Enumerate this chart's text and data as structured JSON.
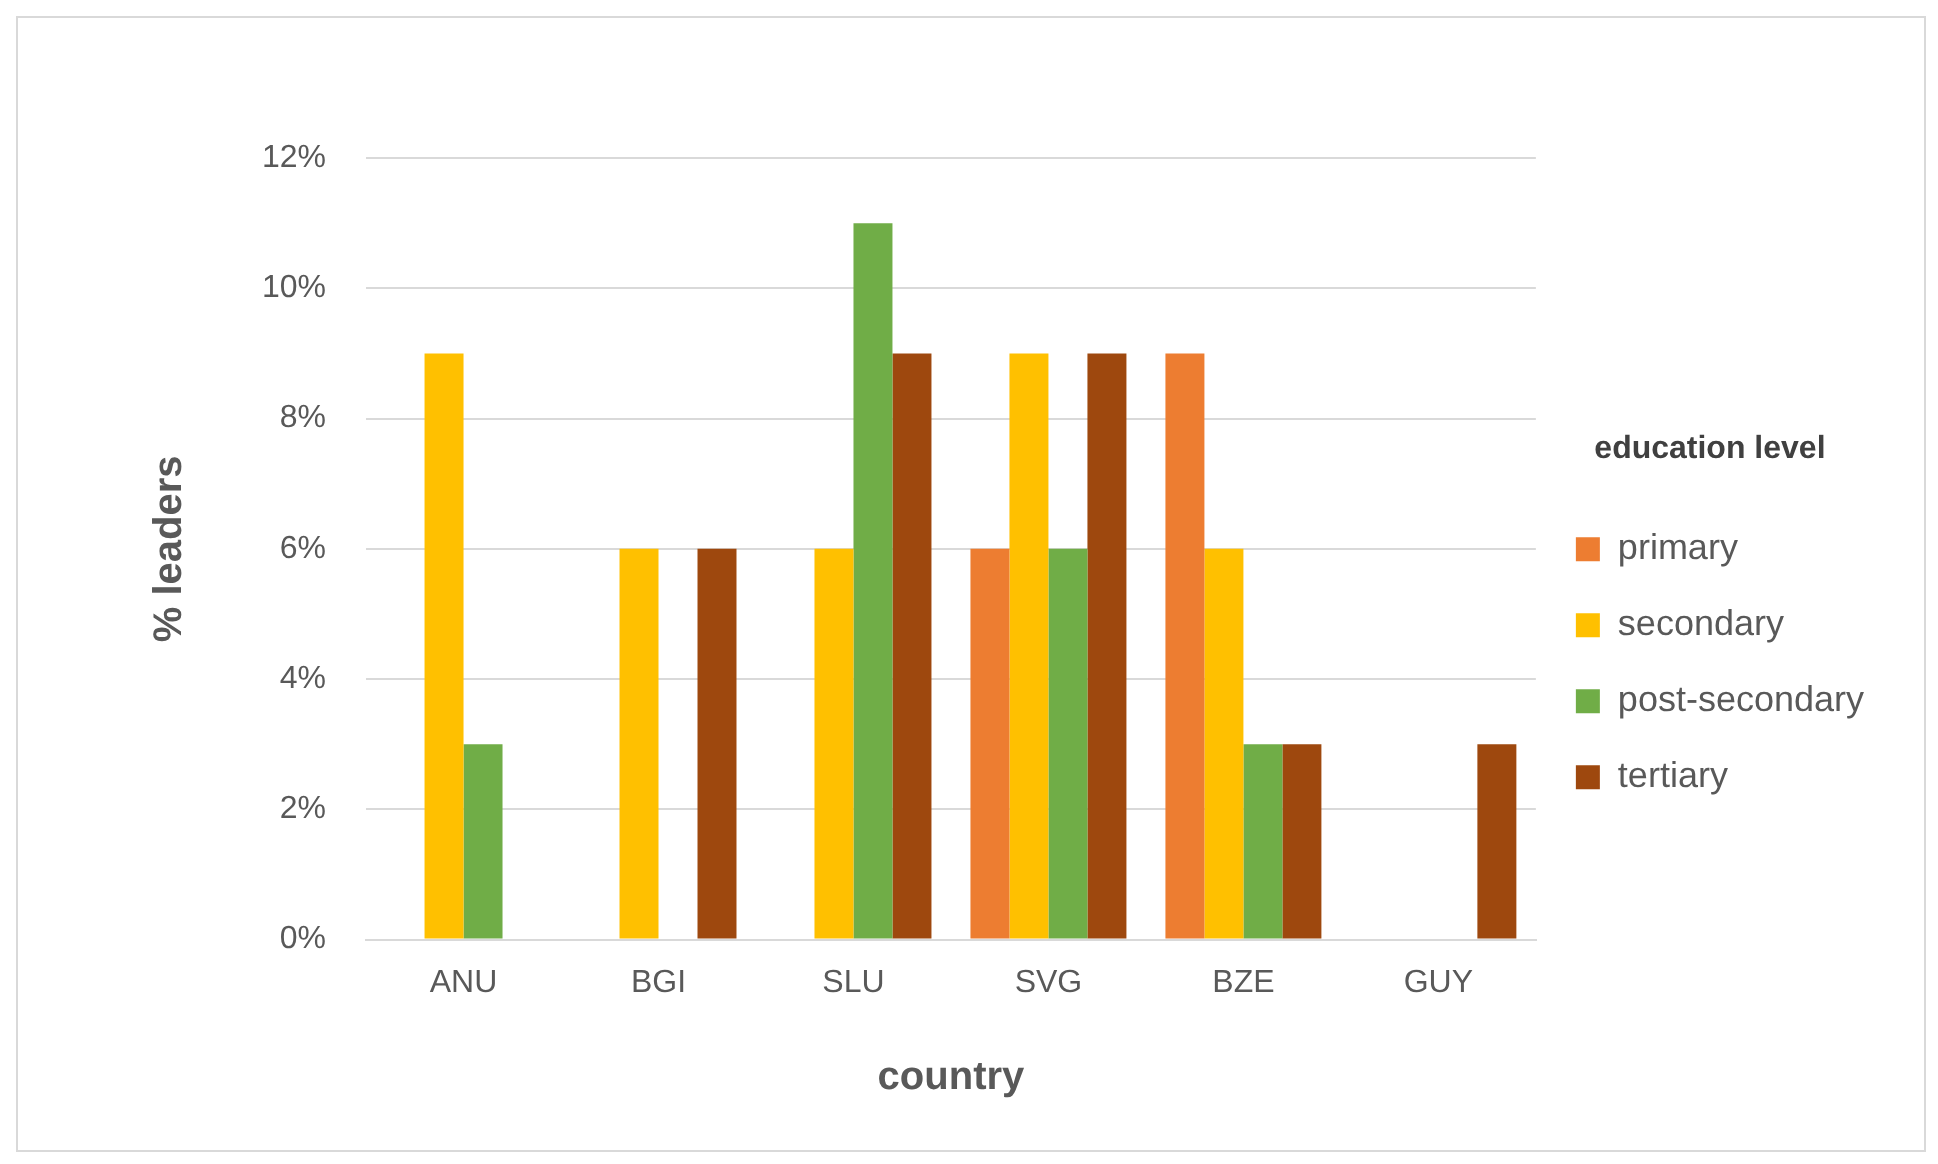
{
  "chart_data": {
    "type": "bar",
    "xlabel": "country",
    "ylabel": "% leaders",
    "legend_title": "education level",
    "legend": "right",
    "grid": "y",
    "categories": [
      "ANU",
      "BGI",
      "SLU",
      "SVG",
      "BZE",
      "GUY"
    ],
    "series": [
      {
        "name": "primary",
        "color": "#ed7d31",
        "values": [
          null,
          null,
          null,
          6,
          9,
          null
        ]
      },
      {
        "name": "secondary",
        "color": "#ffc000",
        "values": [
          9,
          6,
          6,
          9,
          6,
          null
        ]
      },
      {
        "name": "post-secondary",
        "color": "#70ad47",
        "values": [
          3,
          null,
          11,
          6,
          3,
          null
        ]
      },
      {
        "name": "tertiary",
        "color": "#9e480e",
        "values": [
          null,
          6,
          9,
          9,
          3,
          3
        ]
      }
    ],
    "ylim": [
      0,
      12
    ],
    "yticks": [
      {
        "value": 0,
        "label": "0%"
      },
      {
        "value": 2,
        "label": "2%"
      },
      {
        "value": 4,
        "label": "4%"
      },
      {
        "value": 6,
        "label": "6%"
      },
      {
        "value": 8,
        "label": "8%"
      },
      {
        "value": 10,
        "label": "10%"
      },
      {
        "value": 12,
        "label": "12%"
      }
    ]
  }
}
